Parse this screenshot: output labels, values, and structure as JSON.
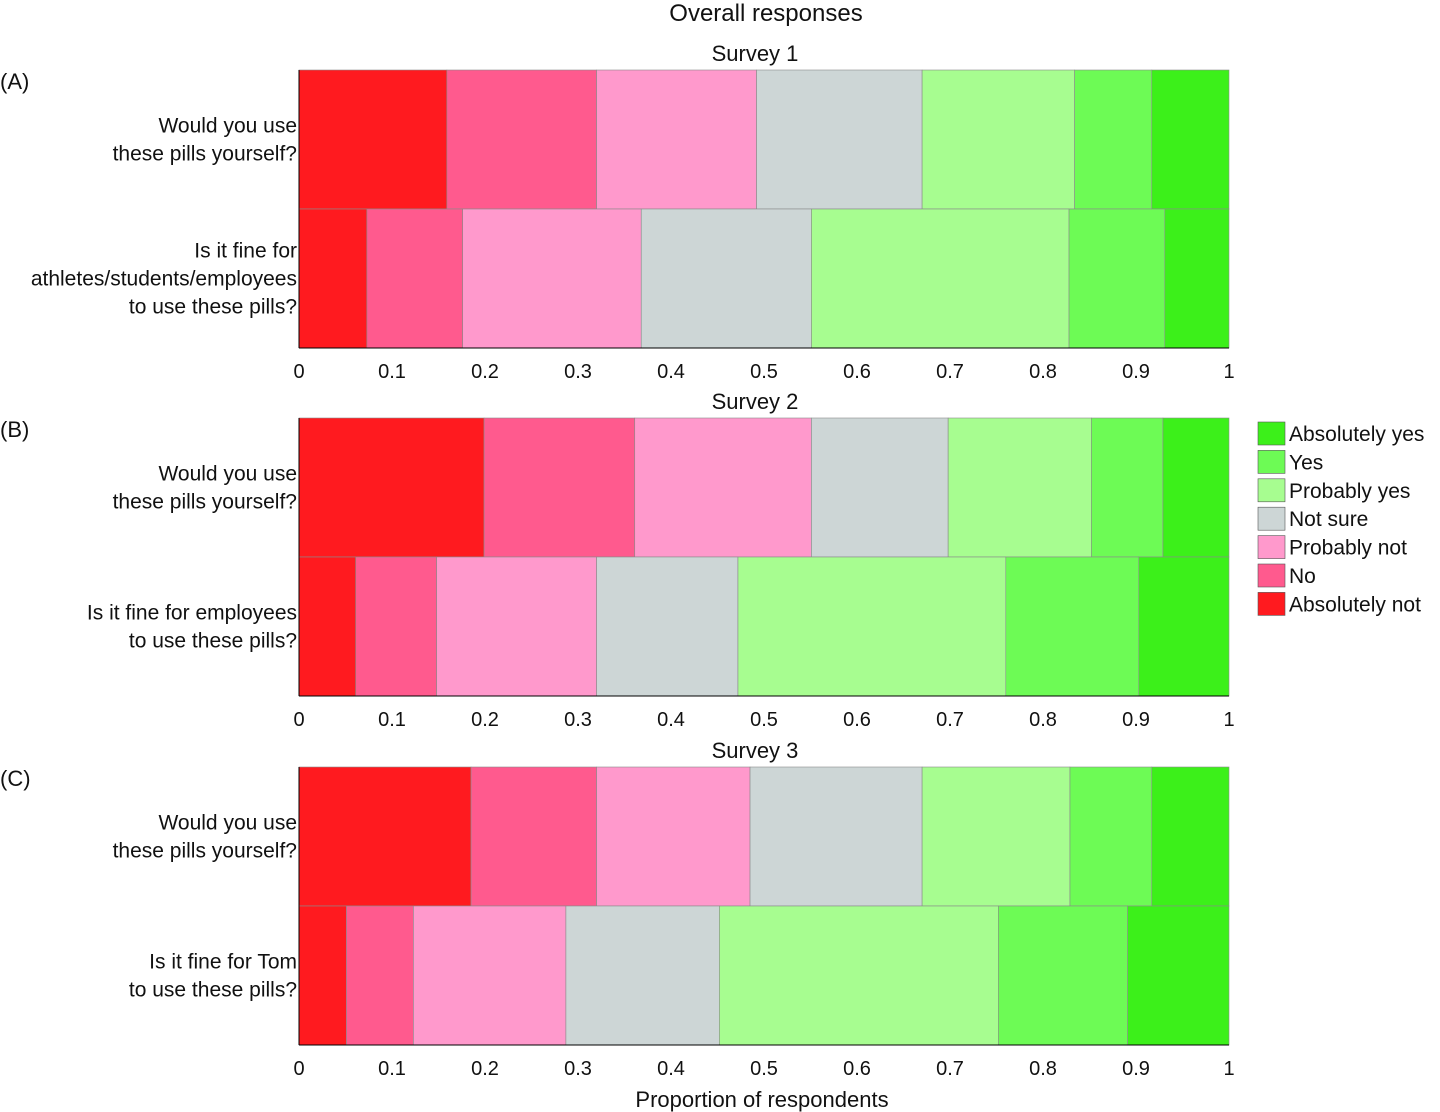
{
  "chart_data": {
    "type": "bar",
    "orientation": "horizontal-stacked",
    "title": "Overall responses",
    "xlabel": "Proportion of respondents",
    "xlim": [
      0,
      1
    ],
    "xticks": [
      "0",
      "0.1",
      "0.2",
      "0.3",
      "0.4",
      "0.5",
      "0.6",
      "0.7",
      "0.8",
      "0.9",
      "1"
    ],
    "grid": false,
    "legend_position": "right",
    "categories_order": [
      "Absolutely not",
      "No",
      "Probably not",
      "Not sure",
      "Probably yes",
      "Yes",
      "Absolutely yes"
    ],
    "legend": [
      "Absolutely yes",
      "Yes",
      "Probably yes",
      "Not sure",
      "Probably not",
      "No",
      "Absolutely not"
    ],
    "colors": {
      "Absolutely not": "#ff1a1f",
      "No": "#ff5a8e",
      "Probably not": "#ff99cc",
      "Not sure": "#cdd6d6",
      "Probably yes": "#a7fd90",
      "Yes": "#6dfb55",
      "Absolutely yes": "#3cf01a"
    },
    "panels": [
      {
        "label": "(A)",
        "title": "Survey 1",
        "rows": [
          {
            "question": [
              "Would you use",
              "these pills yourself?"
            ],
            "values": [
              0.159,
              0.161,
              0.172,
              0.178,
              0.164,
              0.083,
              0.083
            ]
          },
          {
            "question": [
              "Is it fine for",
              "athletes/students/employees",
              "to use these pills?"
            ],
            "values": [
              0.073,
              0.103,
              0.192,
              0.183,
              0.277,
              0.103,
              0.069
            ]
          }
        ]
      },
      {
        "label": "(B)",
        "title": "Survey 2",
        "rows": [
          {
            "question": [
              "Would you use",
              "these pills yourself?"
            ],
            "values": [
              0.199,
              0.162,
              0.19,
              0.147,
              0.154,
              0.077,
              0.071
            ]
          },
          {
            "question": [
              "Is it fine for employees",
              "to use these pills?"
            ],
            "values": [
              0.061,
              0.087,
              0.172,
              0.152,
              0.288,
              0.143,
              0.097
            ]
          }
        ]
      },
      {
        "label": "(C)",
        "title": "Survey 3",
        "rows": [
          {
            "question": [
              "Would you use",
              "these pills yourself?"
            ],
            "values": [
              0.185,
              0.135,
              0.165,
              0.185,
              0.159,
              0.088,
              0.083
            ]
          },
          {
            "question": [
              "Is it fine for Tom",
              "to use these pills?"
            ],
            "values": [
              0.051,
              0.072,
              0.164,
              0.165,
              0.3,
              0.139,
              0.109
            ]
          }
        ]
      }
    ]
  }
}
